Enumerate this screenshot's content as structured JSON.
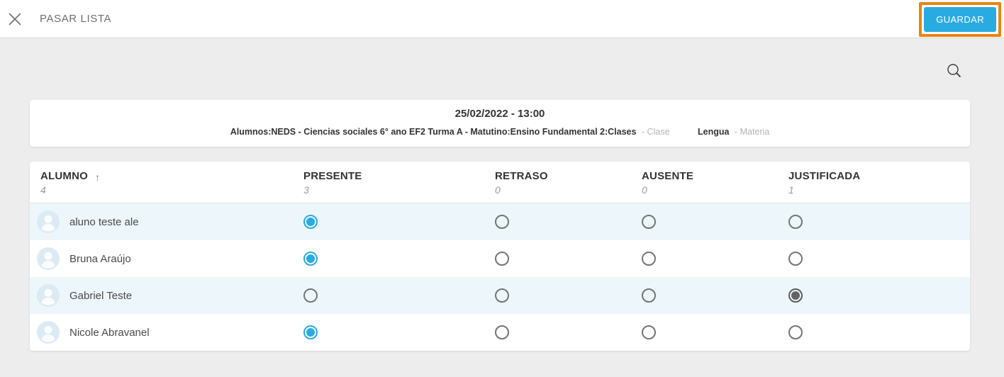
{
  "header": {
    "title": "PASAR LISTA",
    "save_label": "GUARDAR"
  },
  "icons": {
    "close": "close-icon",
    "search": "search-icon",
    "sort_asc_glyph": "↑"
  },
  "session": {
    "datetime": "25/02/2022 - 13:00",
    "class_bold": "Alumnos:NEDS - Ciencias sociales 6° ano EF2 Turma A - Matutino:Ensino Fundamental 2:Clases",
    "class_suffix": "- Clase",
    "subject_bold": "Lengua",
    "subject_suffix": "- Materia"
  },
  "table": {
    "columns": [
      {
        "key": "alumno",
        "label": "ALUMNO",
        "count": "4",
        "sorted": true
      },
      {
        "key": "presente",
        "label": "PRESENTE",
        "count": "3"
      },
      {
        "key": "retraso",
        "label": "RETRASO",
        "count": "0"
      },
      {
        "key": "ausente",
        "label": "AUSENTE",
        "count": "0"
      },
      {
        "key": "justificada",
        "label": "JUSTIFICADA",
        "count": "1"
      }
    ],
    "rows": [
      {
        "name": "aluno teste ale",
        "status": "presente"
      },
      {
        "name": "Bruna Araújo",
        "status": "presente"
      },
      {
        "name": "Gabriel Teste",
        "status": "justificada"
      },
      {
        "name": "Nicole Abravanel",
        "status": "presente"
      }
    ]
  },
  "colors": {
    "accent": "#29abe2",
    "annotation_highlight": "#e98412",
    "justificada_selected": "#636363",
    "row_alt_background": "#edf6fa"
  }
}
